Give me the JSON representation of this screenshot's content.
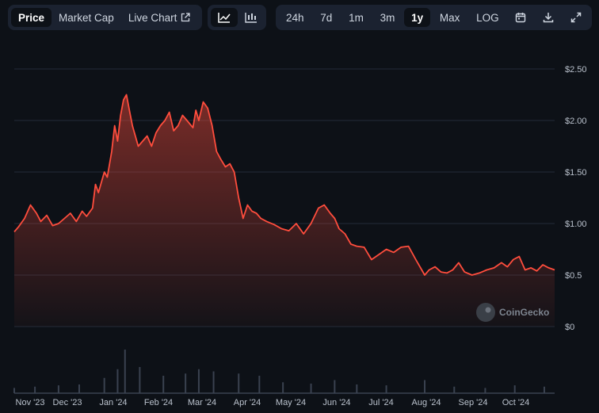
{
  "toolbar": {
    "metric_tabs": [
      {
        "label": "Price",
        "active": true
      },
      {
        "label": "Market Cap",
        "active": false
      },
      {
        "label": "Live Chart",
        "active": false
      }
    ],
    "chart_types": [
      {
        "icon": "line-chart-icon",
        "active": true
      },
      {
        "icon": "candlestick-chart-icon",
        "active": false
      }
    ],
    "ranges": [
      {
        "label": "24h",
        "active": false
      },
      {
        "label": "7d",
        "active": false
      },
      {
        "label": "1m",
        "active": false
      },
      {
        "label": "3m",
        "active": false
      },
      {
        "label": "1y",
        "active": true
      },
      {
        "label": "Max",
        "active": false
      },
      {
        "label": "LOG",
        "active": false
      }
    ],
    "actions": [
      "calendar-icon",
      "download-icon",
      "expand-icon"
    ]
  },
  "watermark": "CoinGecko",
  "colors": {
    "line": "#ff4d3d",
    "background": "#0d1117",
    "grid": "#222b38",
    "volume": "#3a4250"
  },
  "chart_data": {
    "type": "area",
    "ylim": [
      0,
      2.5
    ],
    "yticks": [
      0,
      0.5,
      1.0,
      1.5,
      2.0,
      2.5
    ],
    "ytick_labels": [
      "$0",
      "$0.5",
      "$1.00",
      "$1.50",
      "$2.00",
      "$2.50"
    ],
    "xtick_labels": [
      "Nov '23",
      "Dec '23",
      "Jan '24",
      "Feb '24",
      "Mar '24",
      "Apr '24",
      "May '24",
      "Jun '24",
      "Jul '24",
      "Aug '24",
      "Sep '24",
      "Oct '24"
    ],
    "xlim": [
      "2023-11-01",
      "2024-11-01"
    ],
    "grid": true,
    "series": [
      {
        "x": [
          "2023-11-01",
          "2023-11-04",
          "2023-11-08",
          "2023-11-12",
          "2023-11-16",
          "2023-11-19",
          "2023-11-23",
          "2023-11-27",
          "2023-12-01",
          "2023-12-05",
          "2023-12-09",
          "2023-12-13",
          "2023-12-17",
          "2023-12-20",
          "2023-12-24",
          "2023-12-26",
          "2023-12-28",
          "2024-01-01",
          "2024-01-03",
          "2024-01-06",
          "2024-01-08",
          "2024-01-10",
          "2024-01-12",
          "2024-01-14",
          "2024-01-16",
          "2024-01-18",
          "2024-01-20",
          "2024-01-22",
          "2024-01-24",
          "2024-01-27",
          "2024-01-30",
          "2024-02-02",
          "2024-02-05",
          "2024-02-08",
          "2024-02-11",
          "2024-02-14",
          "2024-02-17",
          "2024-02-20",
          "2024-02-23",
          "2024-02-26",
          "2024-03-01",
          "2024-03-03",
          "2024-03-05",
          "2024-03-08",
          "2024-03-11",
          "2024-03-14",
          "2024-03-17",
          "2024-03-20",
          "2024-03-23",
          "2024-03-26",
          "2024-03-29",
          "2024-04-01",
          "2024-04-04",
          "2024-04-07",
          "2024-04-10",
          "2024-04-13",
          "2024-04-16",
          "2024-04-20",
          "2024-04-25",
          "2024-04-30",
          "2024-05-05",
          "2024-05-10",
          "2024-05-15",
          "2024-05-20",
          "2024-05-25",
          "2024-05-29",
          "2024-06-02",
          "2024-06-05",
          "2024-06-08",
          "2024-06-12",
          "2024-06-16",
          "2024-06-20",
          "2024-06-25",
          "2024-06-30",
          "2024-07-05",
          "2024-07-10",
          "2024-07-15",
          "2024-07-20",
          "2024-07-25",
          "2024-07-30",
          "2024-08-03",
          "2024-08-05",
          "2024-08-08",
          "2024-08-12",
          "2024-08-16",
          "2024-08-20",
          "2024-08-24",
          "2024-08-28",
          "2024-09-01",
          "2024-09-06",
          "2024-09-11",
          "2024-09-16",
          "2024-09-21",
          "2024-09-26",
          "2024-09-30",
          "2024-10-04",
          "2024-10-08",
          "2024-10-12",
          "2024-10-16",
          "2024-10-20",
          "2024-10-24",
          "2024-10-28",
          "2024-11-01"
        ],
        "y": [
          0.92,
          0.97,
          1.05,
          1.18,
          1.1,
          1.02,
          1.08,
          0.98,
          1.0,
          1.05,
          1.1,
          1.02,
          1.12,
          1.07,
          1.15,
          1.38,
          1.3,
          1.5,
          1.45,
          1.7,
          1.95,
          1.8,
          2.05,
          2.2,
          2.25,
          2.1,
          1.95,
          1.85,
          1.75,
          1.8,
          1.85,
          1.75,
          1.88,
          1.95,
          2.0,
          2.08,
          1.9,
          1.95,
          2.05,
          2.0,
          1.93,
          2.1,
          2.0,
          2.18,
          2.12,
          1.95,
          1.7,
          1.62,
          1.55,
          1.58,
          1.5,
          1.25,
          1.05,
          1.18,
          1.12,
          1.1,
          1.05,
          1.02,
          0.99,
          0.95,
          0.93,
          1.0,
          0.9,
          1.0,
          1.15,
          1.18,
          1.1,
          1.05,
          0.95,
          0.9,
          0.8,
          0.78,
          0.77,
          0.65,
          0.7,
          0.75,
          0.72,
          0.77,
          0.78,
          0.65,
          0.55,
          0.5,
          0.55,
          0.58,
          0.53,
          0.52,
          0.55,
          0.62,
          0.53,
          0.5,
          0.52,
          0.55,
          0.57,
          0.62,
          0.58,
          0.65,
          0.68,
          0.55,
          0.57,
          0.54,
          0.6,
          0.57,
          0.55
        ]
      }
    ],
    "volume": {
      "note": "relative volume bars",
      "x": [
        "2023-11-01",
        "2023-11-15",
        "2023-12-01",
        "2023-12-15",
        "2024-01-01",
        "2024-01-10",
        "2024-01-15",
        "2024-01-25",
        "2024-02-10",
        "2024-02-25",
        "2024-03-05",
        "2024-03-15",
        "2024-04-01",
        "2024-04-15",
        "2024-05-01",
        "2024-05-20",
        "2024-06-05",
        "2024-06-20",
        "2024-07-10",
        "2024-08-05",
        "2024-08-25",
        "2024-09-15",
        "2024-10-05",
        "2024-10-25"
      ],
      "y": [
        0.12,
        0.15,
        0.18,
        0.2,
        0.35,
        0.55,
        1.0,
        0.6,
        0.4,
        0.45,
        0.55,
        0.5,
        0.45,
        0.4,
        0.25,
        0.22,
        0.3,
        0.2,
        0.18,
        0.3,
        0.15,
        0.12,
        0.18,
        0.15
      ]
    }
  }
}
